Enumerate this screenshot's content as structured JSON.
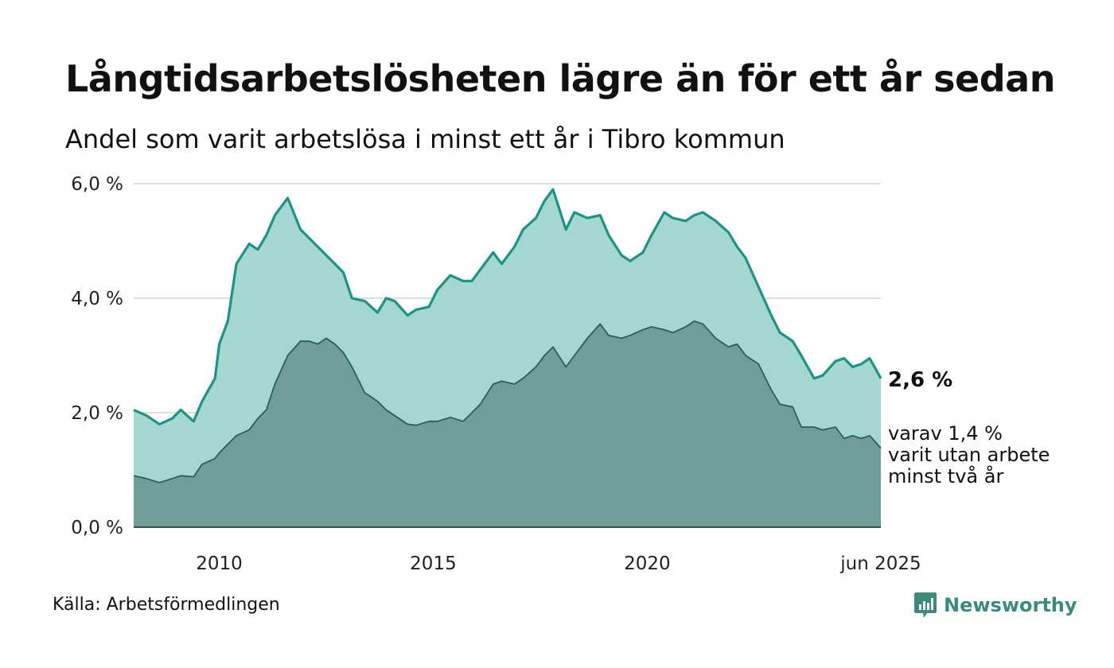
{
  "title": "Långtidsarbetslösheten lägre än för ett år sedan",
  "subtitle": "Andel som varit arbetslösa i minst ett år i Tibro kommun",
  "source": "Källa: Arbetsförmedlingen",
  "brand": "Newsworthy",
  "end_label": "2,6 %",
  "note_lines": [
    "varav 1,4 %",
    "varit utan arbete",
    "minst två år"
  ],
  "colors": {
    "total_fill": "#a3d7d0",
    "total_line": "#1a9484",
    "long_fill": "#6f9e98",
    "long_line": "#2b5e57",
    "brand": "#3a8a7e"
  },
  "chart_data": {
    "type": "area",
    "y_ticks": [
      "0,0 %",
      "2,0 %",
      "4,0 %",
      "6,0 %"
    ],
    "y_tick_values": [
      0,
      2,
      4,
      6
    ],
    "x_ticks": [
      "2010",
      "2015",
      "2020",
      "jun 2025"
    ],
    "x_tick_values": [
      2010.0,
      2015.0,
      2020.0,
      2025.46
    ],
    "ylim": [
      0,
      6
    ],
    "xlim": [
      2008.0,
      2025.46
    ],
    "grid": true,
    "series": [
      {
        "x": [
          2008.0,
          2008.3,
          2008.6,
          2008.9,
          2009.1,
          2009.4,
          2009.6,
          2009.9,
          2010.0,
          2010.2,
          2010.4,
          2010.7,
          2010.9,
          2011.1,
          2011.3,
          2011.6,
          2011.9,
          2012.1,
          2012.3,
          2012.5,
          2012.7,
          2012.9,
          2013.1,
          2013.4,
          2013.7,
          2013.9,
          2014.1,
          2014.4,
          2014.6,
          2014.9,
          2015.1,
          2015.4,
          2015.7,
          2015.9,
          2016.1,
          2016.4,
          2016.6,
          2016.9,
          2017.1,
          2017.4,
          2017.6,
          2017.8,
          2018.1,
          2018.3,
          2018.6,
          2018.9,
          2019.1,
          2019.4,
          2019.6,
          2019.9,
          2020.1,
          2020.4,
          2020.6,
          2020.9,
          2021.1,
          2021.3,
          2021.6,
          2021.9,
          2022.1,
          2022.3,
          2022.6,
          2022.9,
          2023.1,
          2023.4,
          2023.6,
          2023.9,
          2024.1,
          2024.4,
          2024.6,
          2024.8,
          2025.0,
          2025.2,
          2025.46
        ],
        "values": [
          2.05,
          1.95,
          1.8,
          1.9,
          2.05,
          1.85,
          2.2,
          2.6,
          3.2,
          3.6,
          4.6,
          4.95,
          4.85,
          5.1,
          5.45,
          5.75,
          5.2,
          5.05,
          4.9,
          4.75,
          4.6,
          4.45,
          4.0,
          3.95,
          3.75,
          4.0,
          3.95,
          3.7,
          3.8,
          3.85,
          4.15,
          4.4,
          4.3,
          4.3,
          4.5,
          4.8,
          4.6,
          4.9,
          5.2,
          5.4,
          5.7,
          5.9,
          5.2,
          5.5,
          5.4,
          5.45,
          5.1,
          4.75,
          4.65,
          4.8,
          5.1,
          5.5,
          5.4,
          5.35,
          5.45,
          5.5,
          5.35,
          5.15,
          4.9,
          4.7,
          4.2,
          3.7,
          3.4,
          3.25,
          3.0,
          2.6,
          2.65,
          2.9,
          2.95,
          2.8,
          2.85,
          2.95,
          2.6
        ]
      },
      {
        "x": [
          2008.0,
          2008.3,
          2008.6,
          2008.9,
          2009.1,
          2009.4,
          2009.6,
          2009.9,
          2010.0,
          2010.2,
          2010.4,
          2010.7,
          2010.9,
          2011.1,
          2011.3,
          2011.6,
          2011.9,
          2012.1,
          2012.3,
          2012.5,
          2012.7,
          2012.9,
          2013.1,
          2013.4,
          2013.7,
          2013.9,
          2014.1,
          2014.4,
          2014.6,
          2014.9,
          2015.1,
          2015.4,
          2015.7,
          2015.9,
          2016.1,
          2016.4,
          2016.6,
          2016.9,
          2017.1,
          2017.4,
          2017.6,
          2017.8,
          2018.1,
          2018.3,
          2018.6,
          2018.9,
          2019.1,
          2019.4,
          2019.6,
          2019.9,
          2020.1,
          2020.4,
          2020.6,
          2020.9,
          2021.1,
          2021.3,
          2021.6,
          2021.9,
          2022.1,
          2022.3,
          2022.6,
          2022.9,
          2023.1,
          2023.4,
          2023.6,
          2023.9,
          2024.1,
          2024.4,
          2024.6,
          2024.8,
          2025.0,
          2025.2,
          2025.46
        ],
        "values": [
          0.9,
          0.85,
          0.78,
          0.85,
          0.9,
          0.88,
          1.1,
          1.2,
          1.3,
          1.45,
          1.6,
          1.7,
          1.9,
          2.05,
          2.5,
          3.0,
          3.25,
          3.25,
          3.2,
          3.3,
          3.2,
          3.05,
          2.8,
          2.35,
          2.2,
          2.05,
          1.95,
          1.8,
          1.78,
          1.85,
          1.85,
          1.92,
          1.85,
          2.0,
          2.15,
          2.5,
          2.55,
          2.5,
          2.6,
          2.8,
          3.0,
          3.15,
          2.8,
          3.0,
          3.3,
          3.55,
          3.35,
          3.3,
          3.35,
          3.45,
          3.5,
          3.45,
          3.4,
          3.5,
          3.6,
          3.55,
          3.3,
          3.15,
          3.2,
          3.0,
          2.85,
          2.4,
          2.15,
          2.1,
          1.75,
          1.75,
          1.7,
          1.75,
          1.55,
          1.6,
          1.55,
          1.6,
          1.38
        ]
      }
    ]
  }
}
